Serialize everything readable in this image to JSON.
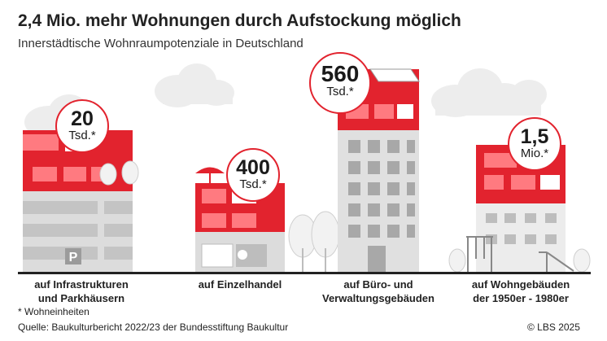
{
  "title": "2,4 Mio. mehr Wohnungen durch Aufstockung möglich",
  "subtitle": "Innerstädtische Wohnraumpotenziale in Deutschland",
  "items": [
    {
      "value": "20",
      "unit": "Tsd.*",
      "label_line1": "auf Infrastrukturen",
      "label_line2": "und Parkhäusern"
    },
    {
      "value": "400",
      "unit": "Tsd.*",
      "label_line1": "auf Einzelhandel",
      "label_line2": ""
    },
    {
      "value": "560",
      "unit": "Tsd.*",
      "label_line1": "auf Büro- und",
      "label_line2": "Verwaltungsgebäuden"
    },
    {
      "value": "1,5",
      "unit": "Mio.*",
      "label_line1": "auf Wohngebäuden",
      "label_line2": "der 1950er - 1980er"
    }
  ],
  "parking_sign": "P",
  "footnote": "* Wohneinheiten",
  "source": "Quelle: Baukulturbericht 2022/23 der Bundesstiftung Baukultur",
  "copyright": "© LBS 2025",
  "colors": {
    "accent": "#e2232e",
    "building_gray": "#dcdcdc",
    "window_gray": "#bdbdbd",
    "ground": "#222222"
  }
}
